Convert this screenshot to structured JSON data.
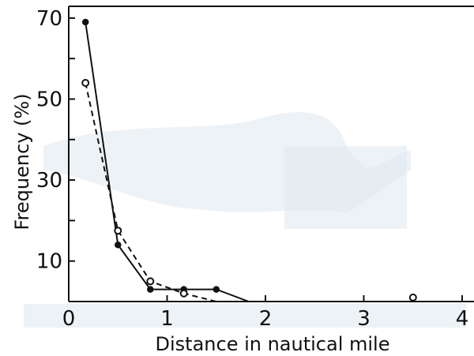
{
  "chart_data": {
    "type": "line",
    "title": "",
    "xlabel": "Distance in nautical mile",
    "ylabel": "Frequency (%)",
    "xlim": [
      0,
      4.2
    ],
    "ylim": [
      0,
      75
    ],
    "x_ticks": [
      0,
      1,
      2,
      3,
      4
    ],
    "x_tick_labels": [
      "0",
      "1",
      "2",
      "3",
      "4"
    ],
    "y_ticks": [
      10,
      30,
      50,
      70
    ],
    "y_tick_labels": [
      "10",
      "30",
      "50",
      "70"
    ],
    "grid": false,
    "legend": "none",
    "series": [
      {
        "marker": "filled-circle",
        "line_style": "solid",
        "color": "#111111",
        "x": [
          0.17,
          0.5,
          0.83,
          1.17,
          1.5,
          1.83
        ],
        "values": [
          69,
          14,
          3,
          3,
          3,
          0
        ]
      },
      {
        "marker": "open-circle",
        "line_style": "dashed",
        "color": "#111111",
        "x": [
          0.17,
          0.5,
          0.83,
          1.17,
          1.5,
          3.5
        ],
        "values": [
          54,
          17.5,
          5,
          2,
          0,
          1
        ]
      }
    ]
  }
}
